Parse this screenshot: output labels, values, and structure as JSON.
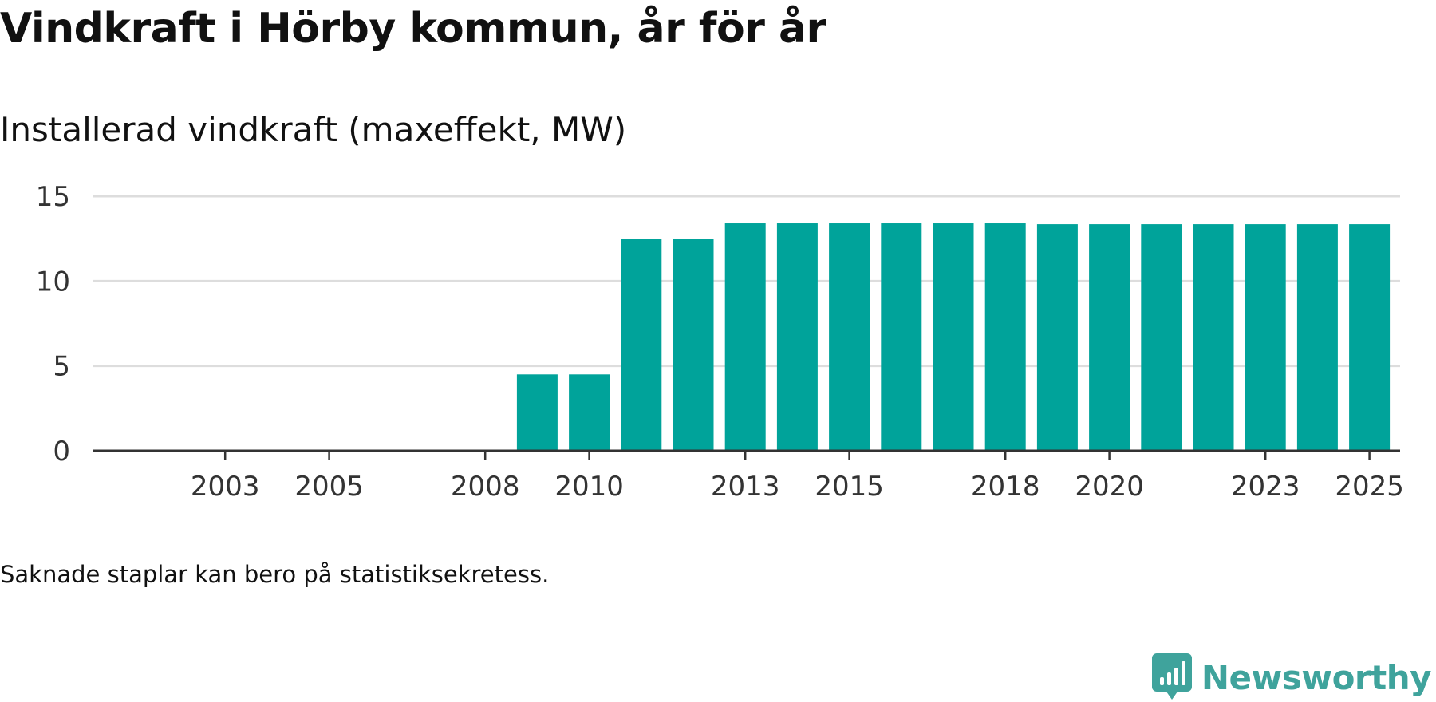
{
  "title": "Vindkraft i Hörby kommun, år för år",
  "chart_data": {
    "type": "bar",
    "title": "Installerad vindkraft (maxeffekt, MW)",
    "xlabel": "",
    "ylabel": "",
    "categories": [
      2002,
      2003,
      2004,
      2005,
      2006,
      2007,
      2008,
      2009,
      2010,
      2011,
      2012,
      2013,
      2014,
      2015,
      2016,
      2017,
      2018,
      2019,
      2020,
      2021,
      2022,
      2023,
      2024,
      2025
    ],
    "values": [
      0,
      0,
      0,
      0,
      0,
      0,
      0,
      4.5,
      4.5,
      12.5,
      12.5,
      13.4,
      13.4,
      13.4,
      13.4,
      13.4,
      13.4,
      13.35,
      13.35,
      13.35,
      13.35,
      13.35,
      13.35,
      13.35
    ],
    "ylim": [
      0,
      15
    ],
    "yticks": [
      0,
      5,
      10,
      15
    ],
    "xticks": [
      2003,
      2005,
      2008,
      2010,
      2013,
      2015,
      2018,
      2020,
      2023,
      2025
    ],
    "grid": true,
    "bar_color": "#00a39a"
  },
  "note": "Saknade staplar kan bero på statistiksekretess.",
  "brand": {
    "name": "Newsworthy",
    "color": "#3fa39c",
    "icon": "newsworthy-chart-bubble-icon"
  }
}
